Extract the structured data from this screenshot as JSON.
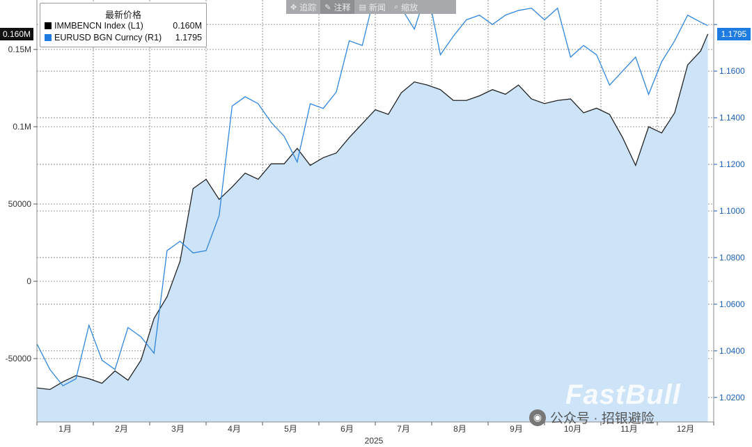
{
  "toolbar": {
    "items": [
      "追踪",
      "注释",
      "新闻",
      "缩放"
    ],
    "icons": [
      "crosshair-icon",
      "pencil-icon",
      "news-icon",
      "zoom-icon"
    ],
    "active_index": 1
  },
  "legend": {
    "title": "最新价格",
    "rows": [
      {
        "label": "IMMBENCN Index  (L1)",
        "value": "0.160M",
        "color": "#000000"
      },
      {
        "label": "EURUSD BGN Curncy  (R1)",
        "value": "1.1795",
        "color": "#1e7be0"
      }
    ]
  },
  "current": {
    "left": "0.160M",
    "right": "1.1795"
  },
  "watermark": {
    "brand": "FastBull",
    "wechat": "公众号 · 招银避险"
  },
  "chart_data": {
    "type": "line",
    "x_axis": {
      "tick_labels": [
        "1月",
        "2月",
        "3月",
        "4月",
        "5月",
        "6月",
        "7月",
        "8月",
        "9月",
        "10月",
        "11月",
        "12月"
      ],
      "year_label": "2025",
      "range": [
        0,
        52
      ]
    },
    "y_left": {
      "ticks": [
        -50000,
        0,
        50000,
        100000,
        150000
      ],
      "tick_labels": [
        "-50000",
        "0",
        "50000",
        "0.1M",
        "0.15M"
      ],
      "range": [
        -91000,
        182000
      ]
    },
    "y_right": {
      "ticks": [
        1.02,
        1.04,
        1.06,
        1.08,
        1.1,
        1.12,
        1.14,
        1.16,
        1.18
      ],
      "tick_labels": [
        "1.0200",
        "1.0400",
        "1.0600",
        "1.0800",
        "1.1000",
        "1.1200",
        "1.1400",
        "1.1600",
        "1.1795"
      ],
      "range": [
        1.0095,
        1.1905
      ]
    },
    "grid": true,
    "legend_position": "top-left",
    "series": [
      {
        "name": "IMMBENCN Index  (L1)",
        "axis": "left",
        "color": "#222222",
        "fill": "#cce3f8",
        "x": [
          0,
          1,
          2,
          3,
          4,
          5,
          6,
          7,
          8,
          9,
          10,
          11,
          12,
          13,
          14,
          15,
          16,
          17,
          18,
          19,
          20,
          21,
          22,
          23,
          24,
          25,
          26,
          27,
          28,
          29,
          30,
          31,
          32,
          33,
          34,
          35,
          36,
          37,
          38,
          39,
          40,
          41,
          42,
          43,
          44,
          45,
          46,
          47,
          48,
          49,
          50,
          51
        ],
        "values": [
          -69000,
          -70000,
          -65000,
          -61000,
          -63000,
          -66000,
          -58000,
          -64000,
          -51000,
          -24000,
          -10000,
          13000,
          60000,
          66000,
          53000,
          61000,
          70000,
          66000,
          76000,
          76000,
          86000,
          75000,
          80000,
          83000,
          93000,
          102000,
          111000,
          108000,
          122000,
          129000,
          127000,
          124000,
          117000,
          117000,
          120000,
          124000,
          121000,
          127000,
          118000,
          115000,
          117000,
          118000,
          109000,
          112000,
          108000,
          93000,
          75000,
          100000,
          96000,
          109000,
          140000,
          149000
        ],
        "last": 160000
      },
      {
        "name": "EURUSD BGN Curncy  (R1)",
        "axis": "right",
        "color": "#2e86de",
        "x": [
          0,
          1,
          2,
          3,
          4,
          5,
          6,
          7,
          8,
          9,
          10,
          11,
          12,
          13,
          14,
          15,
          16,
          17,
          18,
          19,
          20,
          21,
          22,
          23,
          24,
          25,
          26,
          27,
          28,
          29,
          30,
          31,
          32,
          33,
          34,
          35,
          36,
          37,
          38,
          39,
          40,
          41,
          42,
          43,
          44,
          45,
          46,
          47,
          48,
          49,
          50,
          51
        ],
        "values": [
          1.043,
          1.032,
          1.025,
          1.028,
          1.051,
          1.036,
          1.032,
          1.05,
          1.046,
          1.039,
          1.083,
          1.087,
          1.082,
          1.083,
          1.098,
          1.145,
          1.149,
          1.146,
          1.138,
          1.132,
          1.121,
          1.146,
          1.144,
          1.151,
          1.173,
          1.171,
          1.194,
          1.2,
          1.187,
          1.178,
          1.195,
          1.167,
          1.175,
          1.182,
          1.184,
          1.18,
          1.184,
          1.186,
          1.187,
          1.182,
          1.187,
          1.166,
          1.171,
          1.167,
          1.154,
          1.16,
          1.166,
          1.15,
          1.164,
          1.173,
          1.184,
          1.181
        ],
        "last": 1.1795
      }
    ]
  }
}
